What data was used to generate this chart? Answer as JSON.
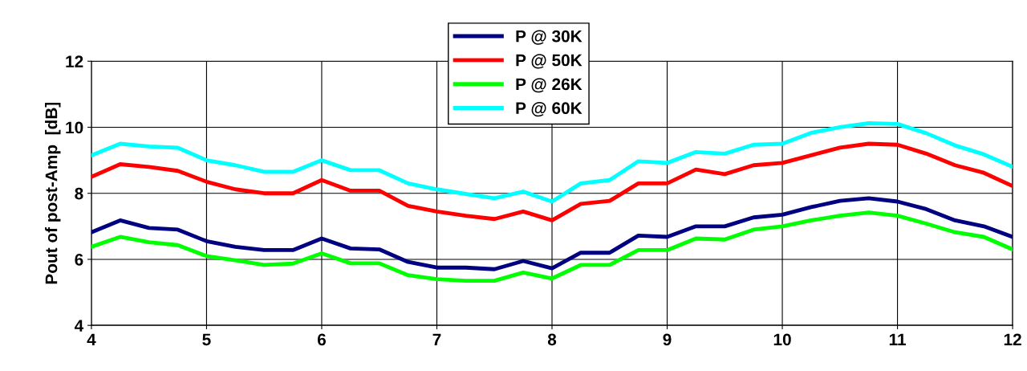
{
  "chart_data": {
    "type": "line",
    "ylabel": "Pout of post-Amp  [dB]",
    "x": [
      4,
      4.25,
      4.5,
      4.75,
      5,
      5.25,
      5.5,
      5.75,
      6,
      6.25,
      6.5,
      6.75,
      7,
      7.25,
      7.5,
      7.75,
      8,
      8.25,
      8.5,
      8.75,
      9,
      9.25,
      9.5,
      9.75,
      10,
      10.25,
      10.5,
      10.75,
      11,
      11.25,
      11.5,
      11.75,
      12
    ],
    "series": [
      {
        "name": "P @ 30K",
        "color": "#000080",
        "values": [
          6.82,
          7.18,
          6.95,
          6.9,
          6.55,
          6.38,
          6.28,
          6.28,
          6.63,
          6.33,
          6.3,
          5.92,
          5.75,
          5.75,
          5.7,
          5.95,
          5.73,
          6.2,
          6.2,
          6.72,
          6.68,
          7.0,
          7.0,
          7.27,
          7.35,
          7.58,
          7.77,
          7.85,
          7.75,
          7.52,
          7.18,
          7.0,
          6.68
        ]
      },
      {
        "name": "P @ 50K",
        "color": "#ff0000",
        "values": [
          8.5,
          8.88,
          8.8,
          8.68,
          8.35,
          8.12,
          8.0,
          8.0,
          8.4,
          8.08,
          8.08,
          7.62,
          7.45,
          7.32,
          7.22,
          7.45,
          7.18,
          7.68,
          7.77,
          8.3,
          8.3,
          8.72,
          8.58,
          8.85,
          8.92,
          9.15,
          9.38,
          9.5,
          9.47,
          9.2,
          8.85,
          8.62,
          8.22
        ]
      },
      {
        "name": "P @ 26K",
        "color": "#00ff00",
        "values": [
          6.38,
          6.68,
          6.52,
          6.43,
          6.1,
          5.97,
          5.83,
          5.87,
          6.18,
          5.88,
          5.88,
          5.52,
          5.4,
          5.35,
          5.35,
          5.6,
          5.42,
          5.83,
          5.83,
          6.28,
          6.28,
          6.63,
          6.6,
          6.9,
          7.0,
          7.18,
          7.32,
          7.42,
          7.32,
          7.08,
          6.82,
          6.68,
          6.3
        ]
      },
      {
        "name": "P @ 60K",
        "color": "#00ffff",
        "values": [
          9.15,
          9.5,
          9.42,
          9.38,
          9.0,
          8.85,
          8.65,
          8.65,
          9.0,
          8.7,
          8.7,
          8.3,
          8.12,
          7.98,
          7.85,
          8.05,
          7.75,
          8.3,
          8.4,
          8.97,
          8.92,
          9.25,
          9.2,
          9.47,
          9.5,
          9.83,
          10.0,
          10.12,
          10.1,
          9.82,
          9.45,
          9.18,
          8.8
        ]
      }
    ],
    "xlim": [
      4,
      12
    ],
    "xticks": [
      4,
      5,
      6,
      7,
      8,
      9,
      10,
      11,
      12
    ],
    "ylim": [
      4,
      12
    ],
    "yticks": [
      4,
      6,
      8,
      10,
      12
    ],
    "grid": true,
    "legend": "top",
    "marker": "none",
    "line_style": "solid"
  }
}
